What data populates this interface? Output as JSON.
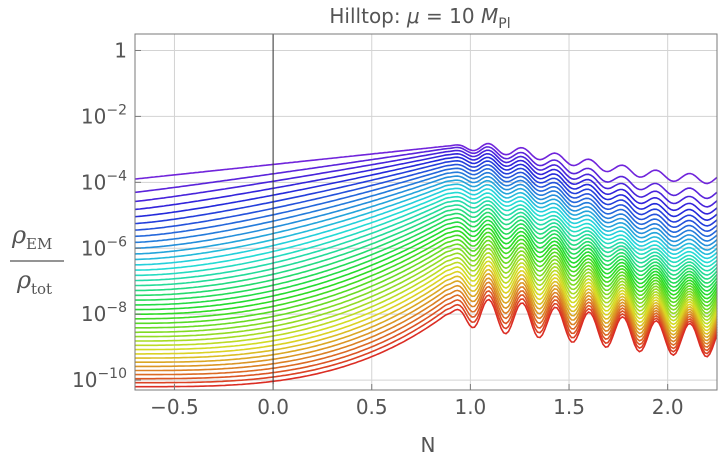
{
  "chart_data": {
    "type": "line",
    "title_prefix": "Hilltop: ",
    "title_mu": "μ",
    "title_eq": " = 10 ",
    "title_M": "M",
    "title_sub": "Pl",
    "xlabel": "N",
    "ylabel_num": "ρ",
    "ylabel_num_sub": "EM",
    "ylabel_den": "ρ",
    "ylabel_den_sub": "tot",
    "y_scale": "log",
    "xlim": [
      -0.7,
      2.25
    ],
    "ylim_log10": [
      -10.3,
      0.5
    ],
    "x_ticks": [
      -0.5,
      0.0,
      0.5,
      1.0,
      1.5,
      2.0
    ],
    "x_tick_labels": [
      "−0.5",
      "0.0",
      "0.5",
      "1.0",
      "1.5",
      "2.0"
    ],
    "y_ticks": [
      {
        "log10": 0,
        "base": "1",
        "exp": ""
      },
      {
        "log10": -2,
        "base": "10",
        "exp": "−2"
      },
      {
        "log10": -4,
        "base": "10",
        "exp": "−4"
      },
      {
        "log10": -6,
        "base": "10",
        "exp": "−6"
      },
      {
        "log10": -8,
        "base": "10",
        "exp": "−8"
      },
      {
        "log10": -10,
        "base": "10",
        "exp": "−10"
      }
    ],
    "grid": true,
    "vertical_line_x": 0.0,
    "series_count": 40,
    "color_scale": "rainbow, violet (top curve) to red (bottom curve)",
    "series_log10_at_start": [
      -3.9,
      -10.2
    ],
    "series_log10_at_peak": [
      -2.9,
      -8.0
    ],
    "peak_x": 0.88,
    "series_log10_at_end": [
      -3.9,
      -8.8
    ],
    "colors": {
      "grid": "#d3d3d3",
      "frame": "#7a7a7a",
      "zero_line": "#333333",
      "text": "#555555"
    }
  }
}
